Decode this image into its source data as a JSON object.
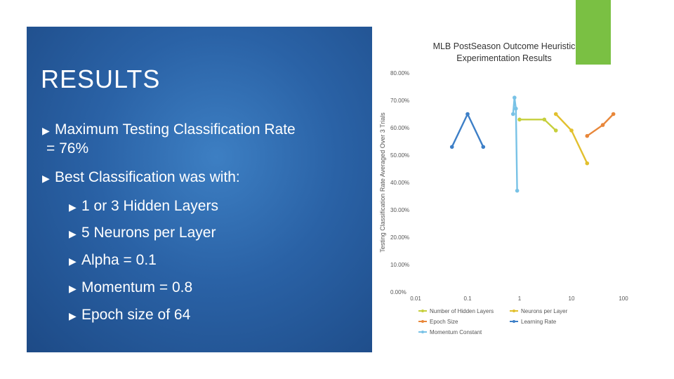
{
  "slide": {
    "title": "RESULTS",
    "bullets": [
      {
        "text": "Maximum Testing Classification Rate",
        "cont": "= 76%"
      },
      {
        "text": "Best Classification was with:"
      },
      {
        "text": "1 or 3 Hidden Layers",
        "sub": true
      },
      {
        "text": "5 Neurons per Layer",
        "sub": true
      },
      {
        "text": "Alpha = 0.1",
        "sub": true
      },
      {
        "text": "Momentum = 0.8",
        "sub": true
      },
      {
        "text": "Epoch size of 64",
        "sub": true
      }
    ],
    "bullet_icon": "play-arrow-icon",
    "colors": {
      "panel": "#2a62a6",
      "accent": "#7ac043"
    }
  },
  "chart_data": {
    "type": "scatter",
    "title_line1": "MLB PostSeason Outcome Heuristic",
    "title_line2": "Experimentation Results",
    "xlabel": "",
    "ylabel": "Testing Classification Rate Averaged Over 3 Trials",
    "x_scale": "log",
    "xlim": [
      0.01,
      100
    ],
    "ylim": [
      0,
      0.8
    ],
    "x_ticks": [
      0.01,
      0.1,
      1,
      10,
      100
    ],
    "x_tick_labels": [
      "0.01",
      "0.1",
      "1",
      "10",
      "100"
    ],
    "y_ticks": [
      0,
      0.1,
      0.2,
      0.3,
      0.4,
      0.5,
      0.6,
      0.7,
      0.8
    ],
    "y_tick_labels": [
      "0.00%",
      "10.00%",
      "20.00%",
      "30.00%",
      "40.00%",
      "50.00%",
      "60.00%",
      "70.00%",
      "80.00%"
    ],
    "grid": false,
    "legend_position": "bottom",
    "series": [
      {
        "name": "Number of Hidden Layers",
        "color": "#c6cf3c",
        "x": [
          1,
          3,
          5
        ],
        "y": [
          0.63,
          0.63,
          0.59
        ]
      },
      {
        "name": "Neurons per Layer",
        "color": "#e2c02e",
        "x": [
          5,
          10,
          20
        ],
        "y": [
          0.65,
          0.59,
          0.47
        ]
      },
      {
        "name": "Epoch Size",
        "color": "#e8873a",
        "x": [
          20,
          40,
          64
        ],
        "y": [
          0.57,
          0.61,
          0.65
        ]
      },
      {
        "name": "Learning Rate",
        "color": "#3d7fc7",
        "x": [
          0.05,
          0.1,
          0.2
        ],
        "y": [
          0.53,
          0.65,
          0.53
        ]
      },
      {
        "name": "Momentum Constant",
        "color": "#78c2e6",
        "x": [
          0.75,
          0.8,
          0.85,
          0.9
        ],
        "y": [
          0.65,
          0.71,
          0.67,
          0.37
        ]
      }
    ]
  }
}
